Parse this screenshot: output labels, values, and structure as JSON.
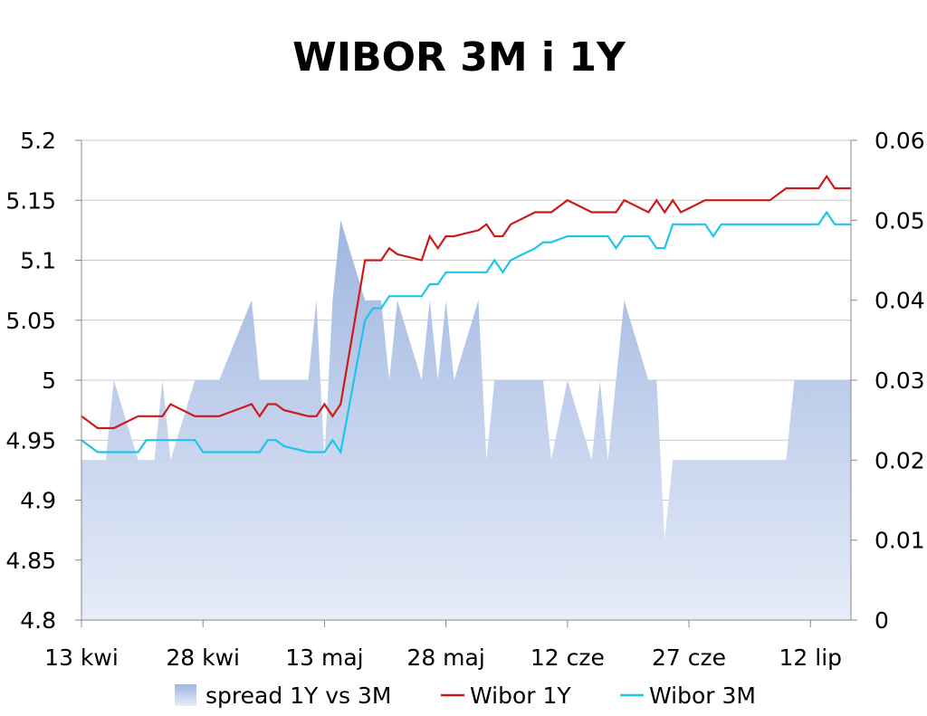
{
  "chart_data": {
    "type": "line",
    "title": "WIBOR 3M i 1Y",
    "x": [
      "2020-04-13",
      "2020-04-14",
      "2020-04-15",
      "2020-04-16",
      "2020-04-17",
      "2020-04-20",
      "2020-04-21",
      "2020-04-22",
      "2020-04-23",
      "2020-04-24",
      "2020-04-27",
      "2020-04-28",
      "2020-04-29",
      "2020-04-30",
      "2020-05-04",
      "2020-05-05",
      "2020-05-06",
      "2020-05-07",
      "2020-05-08",
      "2020-05-11",
      "2020-05-12",
      "2020-05-13",
      "2020-05-14",
      "2020-05-15",
      "2020-05-18",
      "2020-05-19",
      "2020-05-20",
      "2020-05-21",
      "2020-05-22",
      "2020-05-25",
      "2020-05-26",
      "2020-05-27",
      "2020-05-28",
      "2020-05-29",
      "2020-06-01",
      "2020-06-02",
      "2020-06-03",
      "2020-06-04",
      "2020-06-05",
      "2020-06-08",
      "2020-06-09",
      "2020-06-10",
      "2020-06-12",
      "2020-06-15",
      "2020-06-16",
      "2020-06-17",
      "2020-06-18",
      "2020-06-19",
      "2020-06-22",
      "2020-06-23",
      "2020-06-24",
      "2020-06-25",
      "2020-06-26",
      "2020-06-29",
      "2020-06-30",
      "2020-07-01",
      "2020-07-02",
      "2020-07-03",
      "2020-07-06",
      "2020-07-07",
      "2020-07-08",
      "2020-07-09",
      "2020-07-10",
      "2020-07-13",
      "2020-07-14",
      "2020-07-15",
      "2020-07-16",
      "2020-07-17"
    ],
    "series": [
      {
        "name": "spread 1Y vs 3M",
        "type": "area",
        "axis": "right",
        "color": "#b4c6e7",
        "values": [
          0.02,
          0.02,
          0.02,
          0.02,
          0.03,
          0.02,
          0.02,
          0.02,
          0.03,
          0.02,
          0.03,
          0.03,
          0.03,
          0.03,
          0.04,
          0.03,
          0.03,
          0.03,
          0.03,
          0.03,
          0.04,
          0.02,
          0.04,
          0.05,
          0.04,
          0.04,
          0.04,
          0.03,
          0.04,
          0.03,
          0.04,
          0.03,
          0.04,
          0.03,
          0.04,
          0.02,
          0.03,
          0.03,
          0.03,
          0.03,
          0.03,
          0.02,
          0.03,
          0.02,
          0.03,
          0.02,
          0.03,
          0.04,
          0.03,
          0.03,
          0.01,
          0.02,
          0.02,
          0.02,
          0.02,
          0.02,
          0.02,
          0.02,
          0.02,
          0.02,
          0.02,
          0.02,
          0.03,
          0.03,
          0.03,
          0.03,
          0.03,
          0.03
        ]
      },
      {
        "name": "Wibor 1Y",
        "type": "line",
        "axis": "left",
        "color": "#cc1a1a",
        "values": [
          4.97,
          4.965,
          4.96,
          4.96,
          4.96,
          4.97,
          4.97,
          4.97,
          4.97,
          4.98,
          4.97,
          4.97,
          4.97,
          4.97,
          4.98,
          4.97,
          4.98,
          4.98,
          4.975,
          4.97,
          4.97,
          4.98,
          4.97,
          4.98,
          5.1,
          5.1,
          5.1,
          5.11,
          5.105,
          5.1,
          5.12,
          5.11,
          5.12,
          5.12,
          5.125,
          5.13,
          5.12,
          5.12,
          5.13,
          5.14,
          5.14,
          5.14,
          5.15,
          5.14,
          5.14,
          5.14,
          5.14,
          5.15,
          5.14,
          5.15,
          5.14,
          5.15,
          5.14,
          5.15,
          5.15,
          5.15,
          5.15,
          5.15,
          5.15,
          5.15,
          5.155,
          5.16,
          5.16,
          5.16,
          5.17,
          5.16,
          5.16,
          5.16
        ]
      },
      {
        "name": "Wibor 3M",
        "type": "line",
        "axis": "left",
        "color": "#1ec4ec",
        "values": [
          4.95,
          4.945,
          4.94,
          4.94,
          4.94,
          4.94,
          4.95,
          4.95,
          4.95,
          4.95,
          4.95,
          4.94,
          4.94,
          4.94,
          4.94,
          4.94,
          4.95,
          4.95,
          4.945,
          4.94,
          4.94,
          4.94,
          4.95,
          4.94,
          5.05,
          5.06,
          5.06,
          5.07,
          5.07,
          5.07,
          5.08,
          5.08,
          5.09,
          5.09,
          5.09,
          5.09,
          5.1,
          5.09,
          5.1,
          5.11,
          5.115,
          5.115,
          5.12,
          5.12,
          5.12,
          5.12,
          5.11,
          5.12,
          5.12,
          5.11,
          5.11,
          5.13,
          5.13,
          5.13,
          5.12,
          5.13,
          5.13,
          5.13,
          5.13,
          5.13,
          5.13,
          5.13,
          5.13,
          5.13,
          5.14,
          5.13,
          5.13,
          5.13
        ]
      }
    ],
    "x_ticks": [
      "13 kwi",
      "28 kwi",
      "13 maj",
      "28 maj",
      "12 cze",
      "27 cze",
      "12 lip"
    ],
    "x_tick_dates": [
      "2020-04-13",
      "2020-04-28",
      "2020-05-13",
      "2020-05-28",
      "2020-06-12",
      "2020-06-27",
      "2020-07-12"
    ],
    "y_left": {
      "ticks": [
        "4.8",
        "4.85",
        "4.9",
        "4.95",
        "5",
        "5.05",
        "5.1",
        "5.15",
        "5.2"
      ],
      "lim": [
        4.8,
        5.2
      ]
    },
    "y_right": {
      "ticks": [
        "0",
        "0.01",
        "0.02",
        "0.03",
        "0.04",
        "0.05",
        "0.06"
      ],
      "lim": [
        0,
        0.06
      ]
    },
    "grid": "horizontal",
    "legend": "bottom",
    "xlabel": "",
    "ylabel": ""
  }
}
